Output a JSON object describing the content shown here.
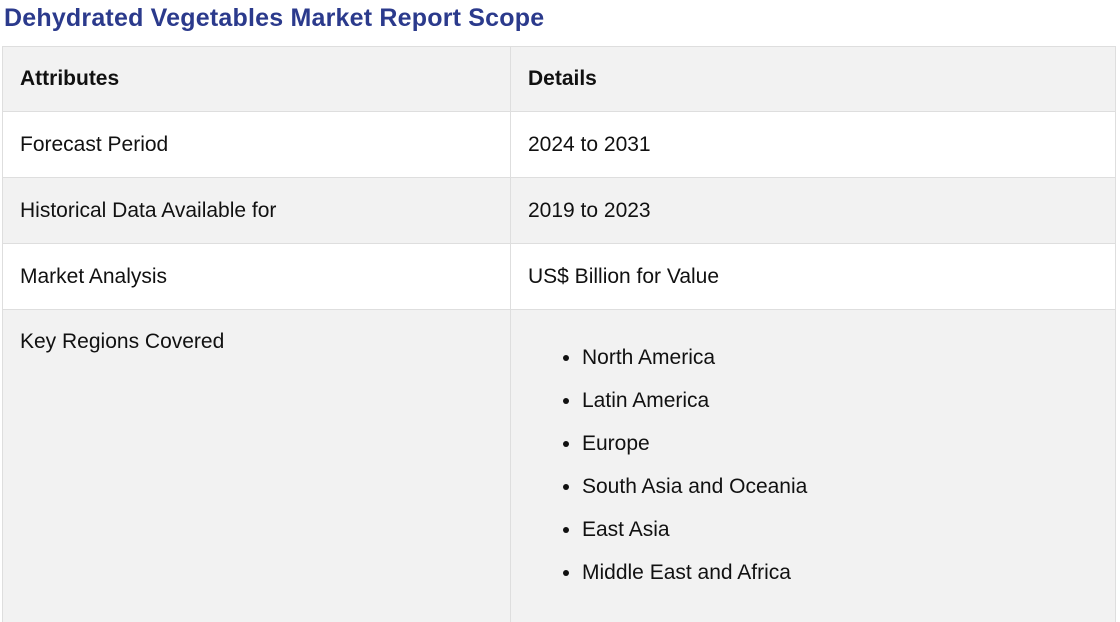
{
  "title": "Dehydrated Vegetables Market Report Scope",
  "table": {
    "headers": {
      "attr": "Attributes",
      "details": "Details"
    },
    "rows": [
      {
        "attr": "Forecast Period",
        "value": "2024 to 2031"
      },
      {
        "attr": "Historical Data Available for",
        "value": "2019 to 2023"
      },
      {
        "attr": "Market Analysis",
        "value": "US$ Billion for Value"
      }
    ],
    "regions": {
      "attr": "Key Regions Covered",
      "items": [
        "North America",
        "Latin America",
        "Europe",
        "South Asia and Oceania",
        "East Asia",
        "Middle East and Africa"
      ]
    }
  },
  "colors": {
    "title": "#2b3a8c",
    "header_bg": "#f2f2f2",
    "row_alt_bg": "#f2f2f2",
    "border": "#dedede"
  }
}
